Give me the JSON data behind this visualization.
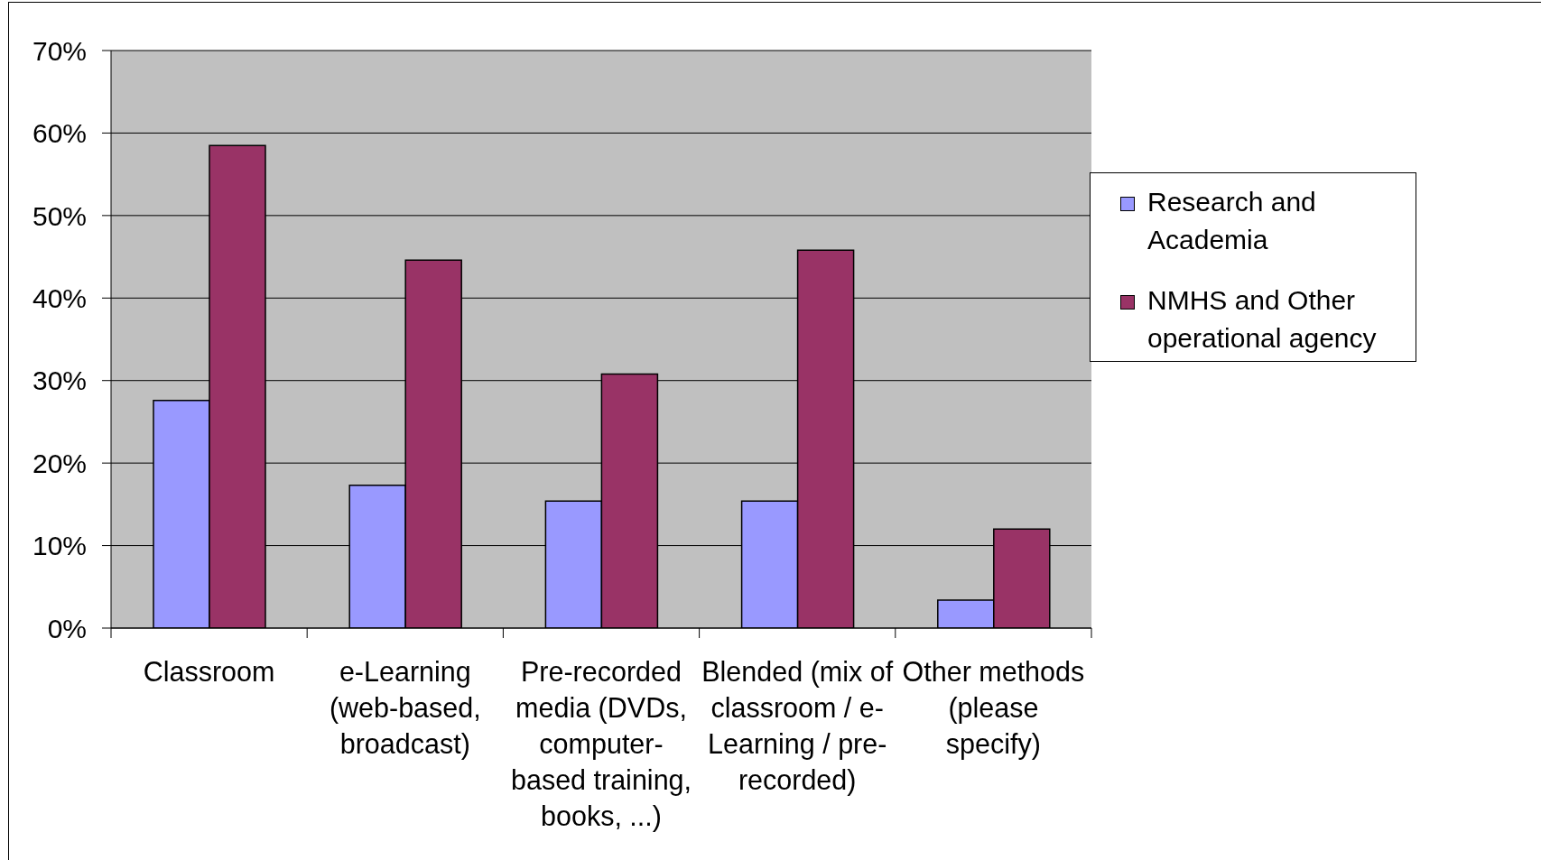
{
  "chart_data": {
    "type": "bar",
    "categories": [
      "Classroom",
      "e-Learning (web-based, broadcast)",
      "Pre-recorded media (DVDs, computer-based training, books, ...)",
      "Blended (mix of classroom / e-Learning / pre-recorded)",
      "Other methods (please specify)"
    ],
    "series": [
      {
        "name": "Research and Academia",
        "color": "#9999ff",
        "values": [
          27.6,
          17.3,
          15.4,
          15.4,
          3.4
        ]
      },
      {
        "name": "NMHS and Other operational agency",
        "color": "#993366",
        "values": [
          58.5,
          44.6,
          30.8,
          45.8,
          12.0
        ]
      }
    ],
    "ylim": [
      0,
      70
    ],
    "yticks": [
      {
        "value": 0,
        "label": "0%"
      },
      {
        "value": 10,
        "label": "10%"
      },
      {
        "value": 20,
        "label": "20%"
      },
      {
        "value": 30,
        "label": "30%"
      },
      {
        "value": 40,
        "label": "40%"
      },
      {
        "value": 50,
        "label": "50%"
      },
      {
        "value": 60,
        "label": "60%"
      },
      {
        "value": 70,
        "label": "70%"
      }
    ],
    "grid": "y",
    "legend": "right"
  }
}
